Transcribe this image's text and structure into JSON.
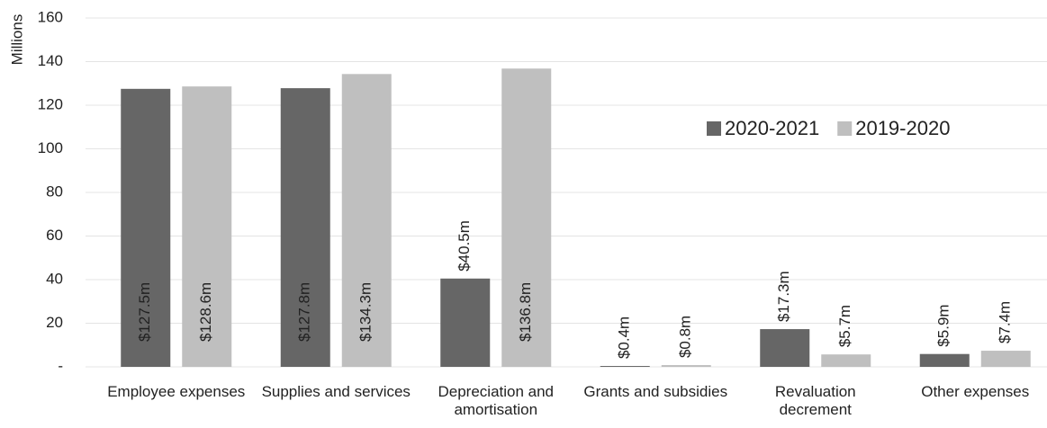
{
  "chart_data": {
    "type": "bar",
    "y_label": "Millions",
    "categories": [
      "Employee expenses",
      "Supplies and services",
      "Depreciation and amortisation",
      "Grants and subsidies",
      "Revaluation decrement",
      "Other expenses"
    ],
    "series": [
      {
        "name": "2020-2021",
        "color": "#666666",
        "values": [
          127.5,
          127.8,
          40.5,
          0.4,
          17.3,
          5.9
        ],
        "value_labels": [
          "$127.5m",
          "$127.8m",
          "$40.5m",
          "$0.4m",
          "$17.3m",
          "$5.9m"
        ]
      },
      {
        "name": "2019-2020",
        "color": "#bfbfbf",
        "values": [
          128.6,
          134.3,
          136.8,
          0.8,
          5.7,
          7.4
        ],
        "value_labels": [
          "$128.6m",
          "$134.3m",
          "$136.8m",
          "$0.8m",
          "$5.7m",
          "$7.4m"
        ]
      }
    ],
    "ylim": [
      0,
      160
    ],
    "yticks": [
      {
        "value": 0,
        "label": "-"
      },
      20,
      40,
      60,
      80,
      100,
      120,
      140,
      160
    ],
    "grid": true,
    "legend_position": "right"
  }
}
